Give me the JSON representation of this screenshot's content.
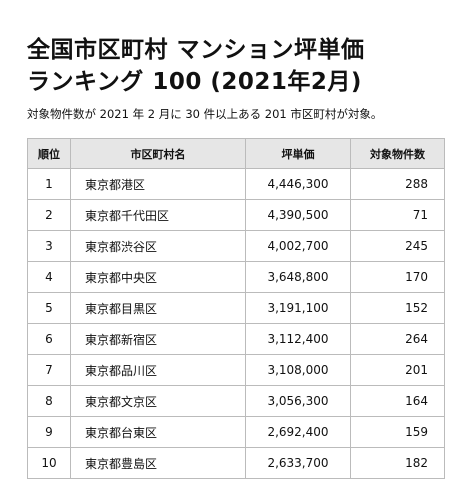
{
  "header": {
    "title_line1": "全国市区町村 マンション坪単価",
    "title_line2": "ランキング 100 (2021年2月)",
    "subtitle": "対象物件数が 2021 年 2 月に 30 件以上ある 201 市区町村が対象。"
  },
  "table": {
    "columns": [
      "順位",
      "市区町村名",
      "坪単価",
      "対象物件数"
    ],
    "rows": [
      [
        1,
        "東京都港区",
        "4,446,300",
        288
      ],
      [
        2,
        "東京都千代田区",
        "4,390,500",
        71
      ],
      [
        3,
        "東京都渋谷区",
        "4,002,700",
        245
      ],
      [
        4,
        "東京都中央区",
        "3,648,800",
        170
      ],
      [
        5,
        "東京都目黒区",
        "3,191,100",
        152
      ],
      [
        6,
        "東京都新宿区",
        "3,112,400",
        264
      ],
      [
        7,
        "東京都品川区",
        "3,108,000",
        201
      ],
      [
        8,
        "東京都文京区",
        "3,056,300",
        164
      ],
      [
        9,
        "東京都台東区",
        "2,692,400",
        159
      ],
      [
        10,
        "東京都豊島区",
        "2,633,700",
        182
      ]
    ]
  }
}
